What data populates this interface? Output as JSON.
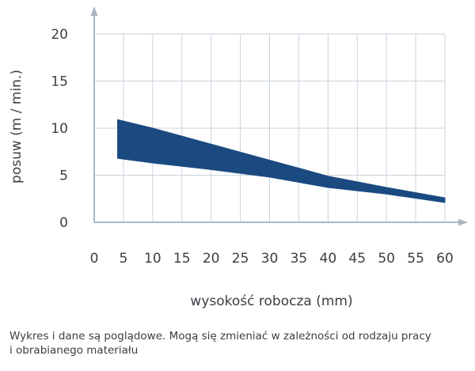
{
  "chart_data": {
    "type": "area",
    "xlabel": "wysokość robocza (mm)",
    "ylabel": "posuw (m / min.)",
    "xlim": [
      0,
      60
    ],
    "ylim": [
      0,
      20
    ],
    "x_ticks": [
      "0",
      "5",
      "10",
      "15",
      "20",
      "25",
      "30",
      "35",
      "40",
      "45",
      "50",
      "55",
      "60"
    ],
    "y_ticks": [
      "0",
      "5",
      "10",
      "15",
      "20"
    ],
    "grid": true,
    "band_color": "#1a4a80",
    "series": [
      {
        "x": [
          4,
          10,
          20,
          30,
          40,
          50,
          60
        ],
        "upper": [
          10.9,
          10.0,
          8.3,
          6.6,
          4.9,
          3.7,
          2.6
        ],
        "lower": [
          6.8,
          6.3,
          5.6,
          4.8,
          3.7,
          3.0,
          2.1
        ]
      }
    ]
  },
  "caption": {
    "line1": "Wykres i dane są poglądowe. Mogą się zmieniać w zależności od rodzaju pracy",
    "line2": "i obrabianego materiału"
  }
}
